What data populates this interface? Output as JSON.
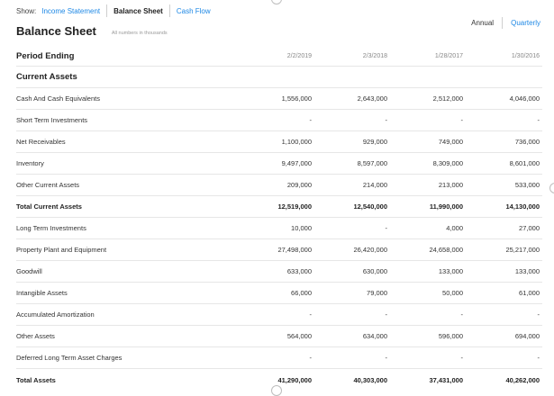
{
  "show_bar": {
    "label": "Show:",
    "links": [
      {
        "label": "Income Statement",
        "active": false
      },
      {
        "label": "Balance Sheet",
        "active": true
      },
      {
        "label": "Cash Flow",
        "active": false
      }
    ]
  },
  "period_toggle": {
    "annual_label": "Annual",
    "quarterly_label": "Quarterly",
    "selected": "Annual"
  },
  "header": {
    "title": "Balance Sheet",
    "note": "All numbers in thousands"
  },
  "colors": {
    "link": "#1e88e5",
    "text": "#333333",
    "divider": "#e6e6e6"
  },
  "table": {
    "period_label": "Period Ending",
    "columns": [
      "2/2/2019",
      "2/3/2018",
      "1/28/2017",
      "1/30/2016"
    ],
    "section_title": "Current Assets",
    "rows": [
      {
        "label": "Cash And Cash Equivalents",
        "values": [
          "1,556,000",
          "2,643,000",
          "2,512,000",
          "4,046,000"
        ],
        "bold": false
      },
      {
        "label": "Short Term Investments",
        "values": [
          "-",
          "-",
          "-",
          "-"
        ],
        "bold": false
      },
      {
        "label": "Net Receivables",
        "values": [
          "1,100,000",
          "929,000",
          "749,000",
          "736,000"
        ],
        "bold": false
      },
      {
        "label": "Inventory",
        "values": [
          "9,497,000",
          "8,597,000",
          "8,309,000",
          "8,601,000"
        ],
        "bold": false
      },
      {
        "label": "Other Current Assets",
        "values": [
          "209,000",
          "214,000",
          "213,000",
          "533,000"
        ],
        "bold": false
      },
      {
        "label": "Total Current Assets",
        "values": [
          "12,519,000",
          "12,540,000",
          "11,990,000",
          "14,130,000"
        ],
        "bold": true
      },
      {
        "label": "Long Term Investments",
        "values": [
          "10,000",
          "-",
          "4,000",
          "27,000"
        ],
        "bold": false
      },
      {
        "label": "Property Plant and Equipment",
        "values": [
          "27,498,000",
          "26,420,000",
          "24,658,000",
          "25,217,000"
        ],
        "bold": false
      },
      {
        "label": "Goodwill",
        "values": [
          "633,000",
          "630,000",
          "133,000",
          "133,000"
        ],
        "bold": false
      },
      {
        "label": "Intangible Assets",
        "values": [
          "66,000",
          "79,000",
          "50,000",
          "61,000"
        ],
        "bold": false
      },
      {
        "label": "Accumulated Amortization",
        "values": [
          "-",
          "-",
          "-",
          "-"
        ],
        "bold": false
      },
      {
        "label": "Other Assets",
        "values": [
          "564,000",
          "634,000",
          "596,000",
          "694,000"
        ],
        "bold": false
      },
      {
        "label": "Deferred Long Term Asset Charges",
        "values": [
          "-",
          "-",
          "-",
          "-"
        ],
        "bold": false
      },
      {
        "label": "Total Assets",
        "values": [
          "41,290,000",
          "40,303,000",
          "37,431,000",
          "40,262,000"
        ],
        "bold": true
      }
    ]
  }
}
